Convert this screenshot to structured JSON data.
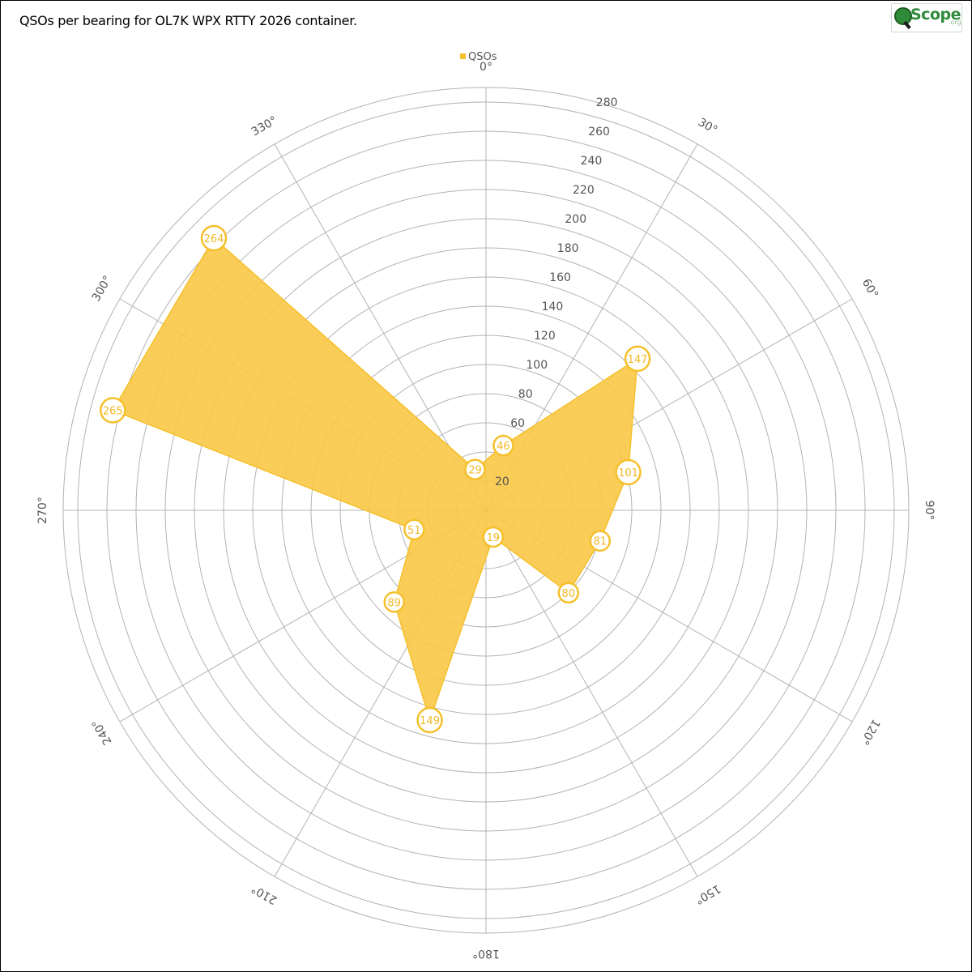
{
  "title": "QSOs per bearing for OL7K WPX RTTY 2026 container.",
  "logo": {
    "word": "Scope",
    "tld": ".org"
  },
  "legend": {
    "label": "QSOs",
    "color": "#f5c02b"
  },
  "colors": {
    "fill": "#f9c846",
    "stroke": "#f5c02b",
    "grid": "#b3b3b3",
    "marker_text": "#f2b928"
  },
  "chart_data": {
    "type": "polar-area",
    "title": "QSOs per bearing for OL7K WPX RTTY 2026 container.",
    "series": [
      {
        "name": "QSOs",
        "points": [
          {
            "bearing": 15,
            "value": 46
          },
          {
            "bearing": 45,
            "value": 147
          },
          {
            "bearing": 75,
            "value": 101
          },
          {
            "bearing": 105,
            "value": 81
          },
          {
            "bearing": 135,
            "value": 80
          },
          {
            "bearing": 165,
            "value": 19
          },
          {
            "bearing": 195,
            "value": 149
          },
          {
            "bearing": 225,
            "value": 89
          },
          {
            "bearing": 255,
            "value": 51
          },
          {
            "bearing": 285,
            "value": 265
          },
          {
            "bearing": 315,
            "value": 264
          },
          {
            "bearing": 345,
            "value": 29
          }
        ]
      }
    ],
    "radial_ticks": [
      20,
      40,
      60,
      80,
      100,
      120,
      140,
      160,
      180,
      200,
      220,
      240,
      260,
      280
    ],
    "radial_tick_labels": [
      "20",
      "",
      "60",
      "80",
      "100",
      "120",
      "140",
      "160",
      "180",
      "200",
      "220",
      "240",
      "260",
      "280"
    ],
    "radial_max": 290,
    "angular_ticks": [
      0,
      30,
      60,
      90,
      120,
      150,
      180,
      210,
      240,
      270,
      300,
      330
    ],
    "angular_tick_labels": [
      "0°",
      "30°",
      "60°",
      "90°",
      "120°",
      "150°",
      "180°",
      "210°",
      "240°",
      "270°",
      "300°",
      "330°"
    ],
    "grid": true,
    "legend_position": "top-center"
  }
}
